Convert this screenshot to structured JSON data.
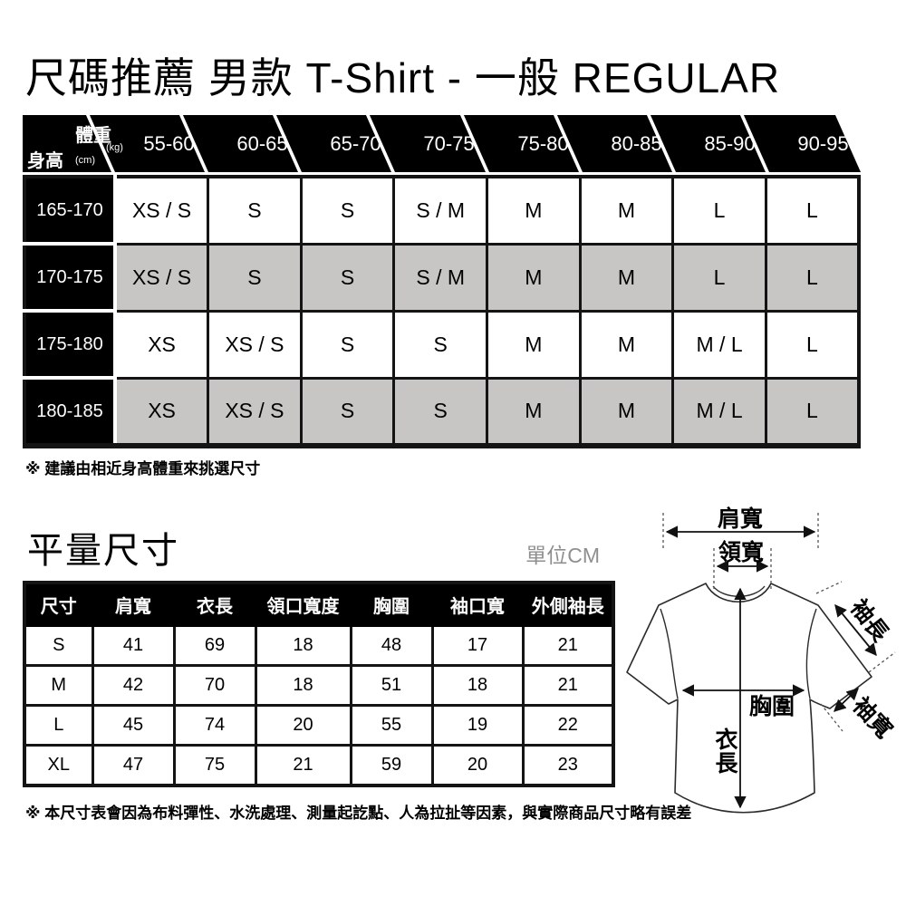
{
  "page": {
    "title": "尺碼推薦 男款  T-Shirt - 一般 REGULAR"
  },
  "size_chart": {
    "corner": {
      "weight_label": "體重",
      "weight_unit": "(kg)",
      "height_label": "身高",
      "height_unit": "(cm)"
    },
    "weight_columns": [
      "55-60",
      "60-65",
      "65-70",
      "70-75",
      "75-80",
      "80-85",
      "85-90",
      "90-95"
    ],
    "rows": [
      {
        "height": "165-170",
        "values": [
          "XS / S",
          "S",
          "S",
          "S / M",
          "M",
          "M",
          "L",
          "L"
        ]
      },
      {
        "height": "170-175",
        "values": [
          "XS / S",
          "S",
          "S",
          "S / M",
          "M",
          "M",
          "L",
          "L"
        ]
      },
      {
        "height": "175-180",
        "values": [
          "XS",
          "XS / S",
          "S",
          "S",
          "M",
          "M",
          "M / L",
          "L"
        ]
      },
      {
        "height": "180-185",
        "values": [
          "XS",
          "XS / S",
          "S",
          "S",
          "M",
          "M",
          "M / L",
          "L"
        ]
      }
    ],
    "note": "※ 建議由相近身高體重來挑選尺寸"
  },
  "measurements": {
    "title": "平量尺寸",
    "unit": "單位CM",
    "columns": [
      "尺寸",
      "肩寬",
      "衣長",
      "領口寬度",
      "胸圍",
      "袖口寬",
      "外側袖長"
    ],
    "rows": [
      {
        "size": "S",
        "values": [
          41,
          69,
          18,
          48,
          17,
          21
        ]
      },
      {
        "size": "M",
        "values": [
          42,
          70,
          18,
          51,
          18,
          21
        ]
      },
      {
        "size": "L",
        "values": [
          45,
          74,
          20,
          55,
          19,
          22
        ]
      },
      {
        "size": "XL",
        "values": [
          47,
          75,
          21,
          59,
          20,
          23
        ]
      }
    ],
    "note": "※ 本尺寸表會因為布料彈性、水洗處理、測量起訖點、人為拉扯等因素，與實際商品尺寸略有誤差"
  },
  "diagram": {
    "labels": {
      "shoulder": "肩寬",
      "neck": "領寬",
      "sleeve_length": "袖長",
      "chest": "胸圍",
      "body_length": "衣長",
      "sleeve_width": "袖寬"
    }
  },
  "colors": {
    "table_black": "#000000",
    "alt_row_gray": "#c8c6c4",
    "unit_gray": "#8f8f8f"
  }
}
